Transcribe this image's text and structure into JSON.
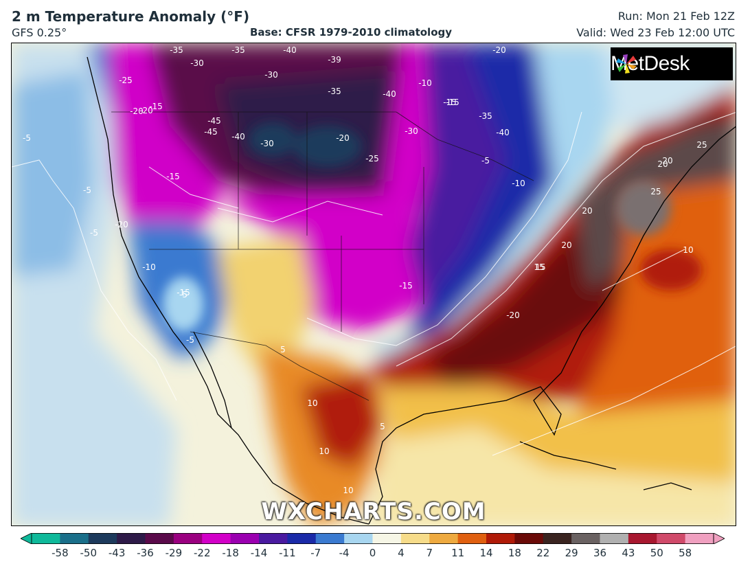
{
  "header": {
    "title": "2 m Temperature Anomaly (°F)",
    "model": "GFS 0.25°",
    "base": "Base: CFSR 1979-2010 climatology",
    "run": "Run: Mon 21 Feb 12Z",
    "valid": "Valid: Wed 23 Feb 12:00 UTC"
  },
  "logo": {
    "name": "MetDesk"
  },
  "watermark": "WXCHARTS.COM",
  "colorbar": {
    "ticks": [
      "-58",
      "-50",
      "-43",
      "-36",
      "-29",
      "-22",
      "-18",
      "-14",
      "-11",
      "-7",
      "-4",
      "0",
      "4",
      "7",
      "11",
      "14",
      "18",
      "22",
      "29",
      "36",
      "43",
      "50",
      "58"
    ],
    "colors": [
      "#0fb99a",
      "#1a6f8a",
      "#1d3a5c",
      "#2e1a48",
      "#5a0a4a",
      "#9a0080",
      "#d200c8",
      "#9a00b0",
      "#4a1aa0",
      "#1a2aa8",
      "#3a7ad0",
      "#a8d6f0",
      "#f6f6e6",
      "#f6dc8a",
      "#eeaa40",
      "#e06010",
      "#b01a08",
      "#6a0a08",
      "#3a2420",
      "#6a6262",
      "#b0b0b0",
      "#a81830",
      "#d04a6a",
      "#f0a0c0"
    ]
  },
  "map": {
    "contour_labels": [
      "-35",
      "-30",
      "-35",
      "-40",
      "-39",
      "-30",
      "-35",
      "-40",
      "-20",
      "-25",
      "-15",
      "-10",
      "-15",
      "-35",
      "-40",
      "-45",
      "-45",
      "-40",
      "-30",
      "-20",
      "-25",
      "-30",
      "-15",
      "-5",
      "-10",
      "-20",
      "-5",
      "-20",
      "-5",
      "-15",
      "-20",
      "-15",
      "-5",
      "-10",
      "-5",
      "10",
      "10",
      "5",
      "10",
      "15",
      "20",
      "20",
      "25",
      "20",
      "25",
      "10",
      "20",
      "15",
      "-20",
      "5",
      "-5",
      "-15"
    ]
  }
}
